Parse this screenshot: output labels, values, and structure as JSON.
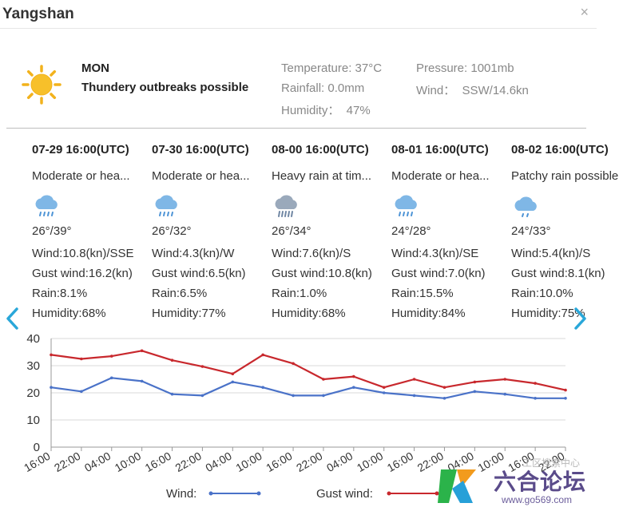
{
  "window": {
    "title": "Yangshan",
    "close_label": "×"
  },
  "current": {
    "day": "MON",
    "condition": "Thundery outbreaks possible",
    "icon": "sun-icon",
    "temperature": "Temperature: 37°C",
    "rainfall": "Rainfall: 0.0mm",
    "humidity": "Humidity：  47%",
    "pressure": "Pressure: 1001mb",
    "wind": "Wind：  SSW/14.6kn"
  },
  "forecast": [
    {
      "date": "07-29 16:00(UTC)",
      "desc": "Moderate or hea...",
      "icon": "rain-cloud-icon",
      "temp": "26°/39°",
      "wind": "Wind:10.8(kn)/SSE",
      "gust": "Gust wind:16.2(kn)",
      "rain": "Rain:8.1%",
      "humidity": "Humidity:68%"
    },
    {
      "date": "07-30 16:00(UTC)",
      "desc": "Moderate or hea...",
      "icon": "rain-cloud-icon",
      "temp": "26°/32°",
      "wind": "Wind:4.3(kn)/W",
      "gust": "Gust wind:6.5(kn)",
      "rain": "Rain:6.5%",
      "humidity": "Humidity:77%"
    },
    {
      "date": "08-00 16:00(UTC)",
      "desc": "Heavy rain at tim...",
      "icon": "heavy-rain-cloud-icon",
      "temp": "26°/34°",
      "wind": "Wind:7.6(kn)/S",
      "gust": "Gust wind:10.8(kn)",
      "rain": "Rain:1.0%",
      "humidity": "Humidity:68%"
    },
    {
      "date": "08-01 16:00(UTC)",
      "desc": "Moderate or hea...",
      "icon": "rain-cloud-icon",
      "temp": "24°/28°",
      "wind": "Wind:4.3(kn)/SE",
      "gust": "Gust wind:7.0(kn)",
      "rain": "Rain:15.5%",
      "humidity": "Humidity:84%"
    },
    {
      "date": "08-02 16:00(UTC)",
      "desc": "Patchy rain possible",
      "icon": "light-rain-cloud-icon",
      "temp": "24°/33°",
      "wind": "Wind:5.4(kn)/S",
      "gust": "Gust wind:8.1(kn)",
      "rain": "Rain:10.0%",
      "humidity": "Humidity:75%"
    }
  ],
  "colors": {
    "wind": "#4a72c8",
    "gust": "#c8282d",
    "arrow": "#29a7d9",
    "axis": "#999999",
    "grid": "#d9d9d9"
  },
  "chart_data": {
    "type": "line",
    "yticks": [
      0,
      10,
      20,
      30,
      40
    ],
    "ylim": [
      0,
      40
    ],
    "x": [
      "16:00",
      "22:00",
      "04:00",
      "10:00",
      "16:00",
      "22:00",
      "04:00",
      "10:00",
      "16:00",
      "22:00",
      "04:00",
      "10:00",
      "16:00",
      "22:00",
      "04:00",
      "10:00",
      "16:00",
      "22:00"
    ],
    "series": [
      {
        "name": "Wind:",
        "values": [
          22,
          20.5,
          25.5,
          24.3,
          19.5,
          19,
          24,
          22,
          19,
          19,
          22,
          20,
          19,
          18,
          20.5,
          19.5,
          18,
          18
        ]
      },
      {
        "name": "Gust wind:",
        "values": [
          34,
          32.5,
          33.5,
          35.5,
          32,
          29.7,
          27,
          34,
          30.8,
          25,
          26,
          22,
          25,
          22,
          24,
          25,
          23.5,
          21
        ]
      }
    ]
  },
  "watermark": {
    "cn_text": "工区搜索中心",
    "logo_text": "六合论坛",
    "url": "www.go569.com"
  }
}
